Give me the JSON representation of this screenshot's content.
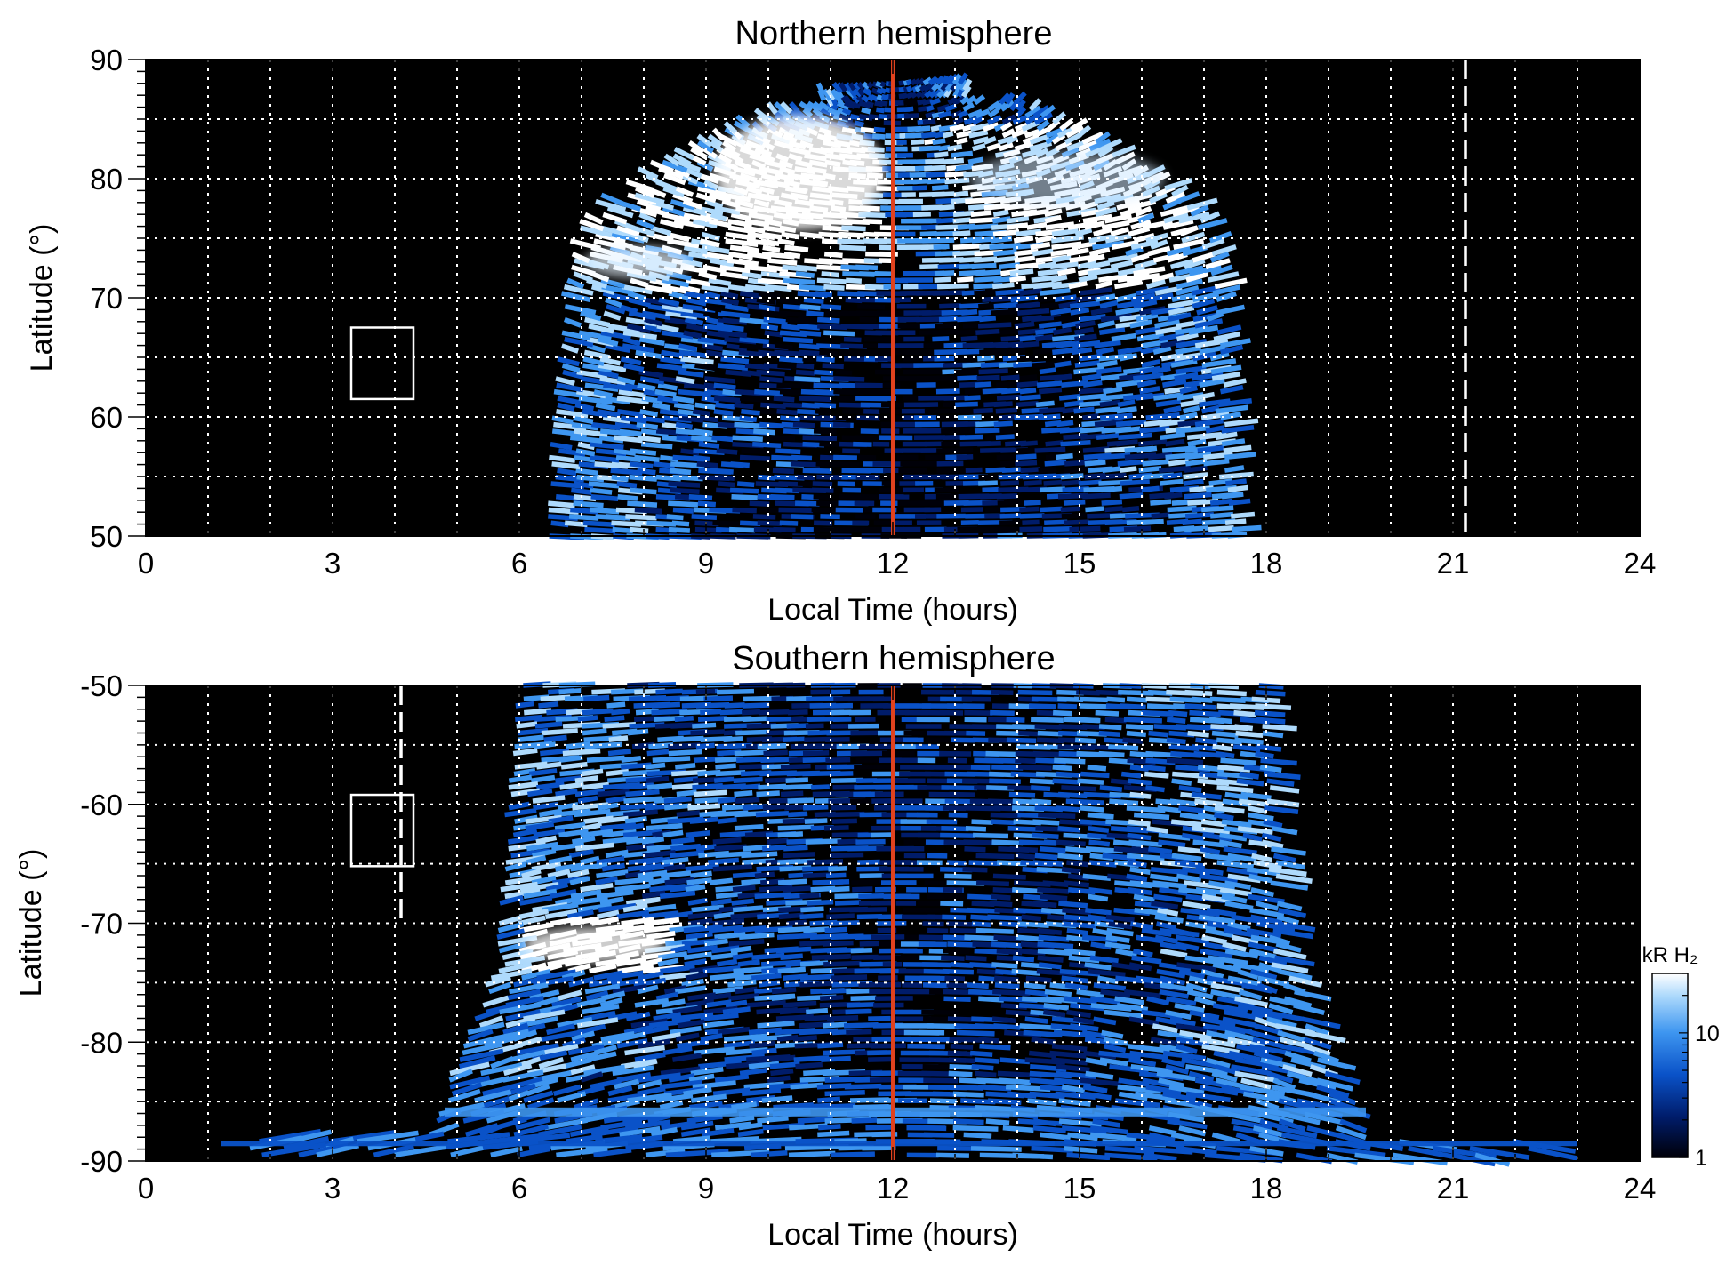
{
  "chart_data": [
    {
      "type": "heatmap",
      "title": "Northern hemisphere",
      "xlabel": "Local Time (hours)",
      "ylabel": "Latitude (°)",
      "xlim": [
        0,
        24
      ],
      "ylim": [
        50,
        90
      ],
      "x_ticks": [
        0,
        3,
        6,
        9,
        12,
        15,
        18,
        21,
        24
      ],
      "y_ticks": [
        50,
        60,
        70,
        80,
        90
      ],
      "grid": true,
      "grid_x_step": 1,
      "grid_y_step": 5,
      "background_color": "#000000",
      "emission_region": {
        "description_lt_range_at_lowest_latitude": [
          6.4,
          17.8
        ],
        "poleward_limit_lat": 88,
        "bright_arc_lat_range": [
          74,
          85
        ],
        "bright_arc_lt_range": [
          8,
          17
        ]
      },
      "noon_line": {
        "x": 12,
        "color": "#e0421e"
      },
      "dashed_marker": {
        "x": 21.2,
        "y_range": [
          50,
          90
        ]
      },
      "box_marker": {
        "x_range": [
          3.3,
          4.3
        ],
        "y_range": [
          61.5,
          67.5
        ]
      }
    },
    {
      "type": "heatmap",
      "title": "Southern hemisphere",
      "xlabel": "Local Time (hours)",
      "ylabel": "Latitude (°)",
      "xlim": [
        0,
        24
      ],
      "ylim": [
        -90,
        -50
      ],
      "x_ticks": [
        0,
        3,
        6,
        9,
        12,
        15,
        18,
        21,
        24
      ],
      "y_ticks": [
        -90,
        -80,
        -70,
        -60,
        -50
      ],
      "grid": true,
      "grid_x_step": 1,
      "grid_y_step": 5,
      "background_color": "#000000",
      "emission_region": {
        "description_lt_range_at_highest_latitude": [
          6.0,
          18.2
        ],
        "bright_patch_lat_range": [
          -74,
          -70
        ],
        "bright_patch_lt_range": [
          6.0,
          8.2
        ]
      },
      "noon_line": {
        "x": 12,
        "color": "#e0421e"
      },
      "dashed_marker": {
        "x": 4.1,
        "y_range": [
          -70,
          -50
        ]
      },
      "box_marker": {
        "x_range": [
          3.3,
          4.3
        ],
        "y_range": [
          -65.2,
          -59.2
        ]
      }
    }
  ],
  "colorbar": {
    "title": "kR H₂",
    "scale": "log",
    "range": [
      1,
      30
    ],
    "ticks": [
      1,
      10
    ],
    "tick_labels": [
      "1",
      "10"
    ],
    "colors": [
      "#000008",
      "#001c6a",
      "#0a52c8",
      "#3e96f0",
      "#aedafc",
      "#ffffff"
    ]
  }
}
